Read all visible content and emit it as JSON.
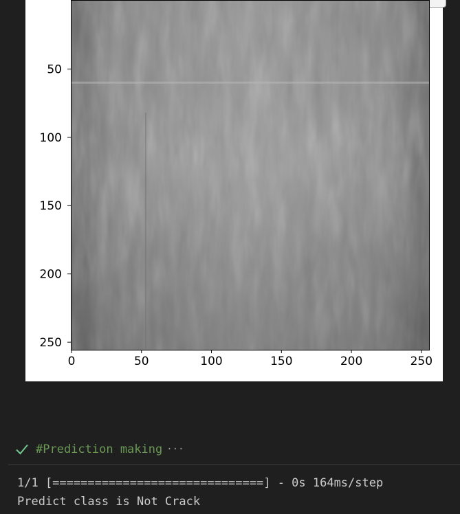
{
  "plot": {
    "x_ticks": [
      "0",
      "50",
      "100",
      "150",
      "200",
      "250"
    ],
    "y_ticks": [
      "50",
      "100",
      "150",
      "200",
      "250"
    ]
  },
  "chart_data": {
    "type": "image",
    "xlim": [
      -0.5,
      255.5
    ],
    "ylim": [
      255.5,
      -0.5
    ],
    "x_tick_values": [
      0,
      50,
      100,
      150,
      200,
      250
    ],
    "y_tick_values": [
      50,
      100,
      150,
      200,
      250
    ]
  },
  "cell": {
    "status_icon": "check-icon",
    "status_color": "#73c991",
    "title": "#Prediction making",
    "more": "···",
    "title_color": "#6a9955"
  },
  "output": {
    "progress_line": "1/1 [==============================] - 0s 164ms/step",
    "result_line": "Predict class is Not Crack"
  }
}
